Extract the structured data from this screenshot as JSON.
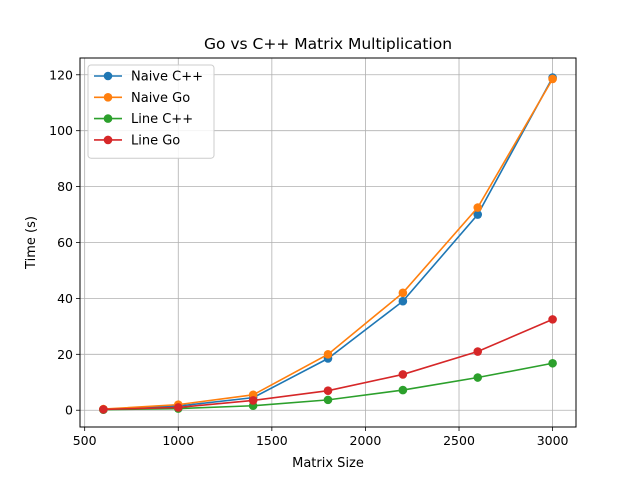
{
  "chart_data": {
    "type": "line",
    "title": "Go vs C++ Matrix Multiplication",
    "xlabel": "Matrix Size",
    "ylabel": "Time (s)",
    "xlim": [
      475,
      3125
    ],
    "ylim": [
      -6,
      126
    ],
    "xticks": [
      500,
      1000,
      1500,
      2000,
      2500,
      3000
    ],
    "yticks": [
      0,
      20,
      40,
      60,
      80,
      100,
      120
    ],
    "grid": true,
    "legend_position": "top-left",
    "x": [
      600,
      1000,
      1400,
      1800,
      2200,
      2600,
      3000
    ],
    "series": [
      {
        "name": "Naive C++",
        "color": "#1f77b4",
        "values": [
          0.3,
          1.5,
          4.5,
          18.5,
          39.0,
          70.0,
          119.0
        ]
      },
      {
        "name": "Naive Go",
        "color": "#ff7f0e",
        "values": [
          0.4,
          2.0,
          5.5,
          20.0,
          42.0,
          72.5,
          118.5
        ]
      },
      {
        "name": "Line C++",
        "color": "#2ca02c",
        "values": [
          0.2,
          0.6,
          1.6,
          3.7,
          7.2,
          11.7,
          16.8
        ]
      },
      {
        "name": "Line Go",
        "color": "#d62728",
        "values": [
          0.3,
          1.0,
          3.5,
          7.0,
          12.8,
          21.0,
          32.5
        ]
      }
    ]
  }
}
